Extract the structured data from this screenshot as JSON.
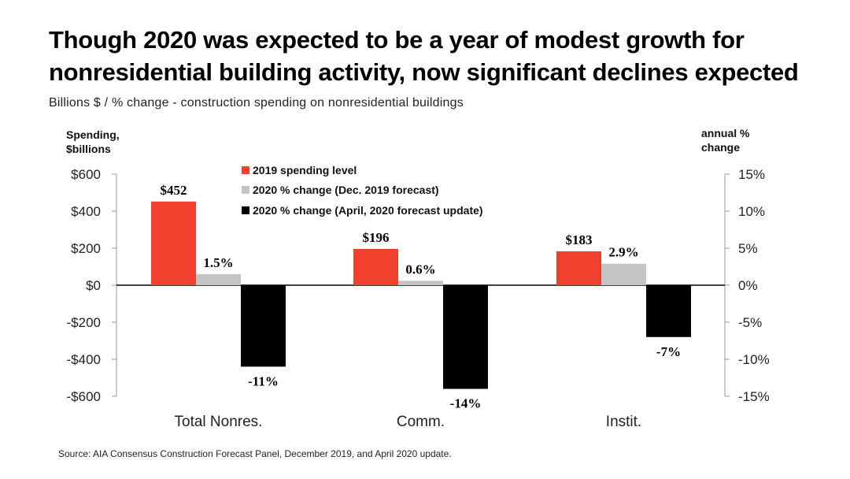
{
  "title": "Though 2020 was expected to be a year of modest growth for nonresidential building activity, now significant declines expected",
  "subtitle": "Billions $ / % change - construction spending on nonresidential buildings",
  "source": "Source:  AIA Consensus Construction Forecast Panel, December 2019, and April 2020 update.",
  "colors": {
    "spending": "#f0402e",
    "dec_forecast": "#c4c4c4",
    "april_update": "#000000"
  },
  "chart_data": {
    "type": "bar",
    "categories": [
      "Total Nonres.",
      "Comm.",
      "Instit."
    ],
    "left_axis": {
      "label_line1": "Spending,",
      "label_line2": "$billions",
      "ylim": [
        -600,
        600
      ],
      "ticks": [
        600,
        400,
        200,
        0,
        -200,
        -400,
        -600
      ],
      "tick_labels": [
        "$600",
        "$400",
        "$200",
        "$0",
        "-$200",
        "-$400",
        "-$600"
      ]
    },
    "right_axis": {
      "label_line1": "annual %",
      "label_line2": "change",
      "ylim": [
        -15,
        15
      ],
      "ticks": [
        15,
        10,
        5,
        0,
        -5,
        -10,
        -15
      ],
      "tick_labels": [
        "15%",
        "10%",
        "5%",
        "0%",
        "-5%",
        "-10%",
        "-15%"
      ]
    },
    "series": [
      {
        "name": "2019 spending level",
        "axis": "left",
        "values": [
          452,
          196,
          183
        ],
        "labels": [
          "$452",
          "$196",
          "$183"
        ]
      },
      {
        "name": "2020 % change (Dec. 2019 forecast)",
        "axis": "right",
        "values": [
          1.5,
          0.6,
          2.9
        ],
        "labels": [
          "1.5%",
          "0.6%",
          "2.9%"
        ]
      },
      {
        "name": "2020 % change (April, 2020 forecast update)",
        "axis": "right",
        "values": [
          -11,
          -14,
          -7
        ],
        "labels": [
          "-11%",
          "-14%",
          "-7%"
        ]
      }
    ],
    "legend_position": "top-center",
    "grid": false
  }
}
